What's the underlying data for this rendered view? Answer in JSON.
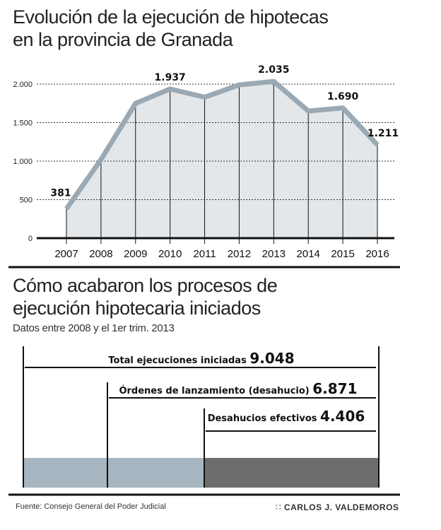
{
  "chart_data": [
    {
      "type": "area",
      "title": "Evolución de la ejecución de hipotecas en la provincia de Granada",
      "title_lines": [
        "Evolución de la ejecución de hipotecas",
        "en la provincia de Granada"
      ],
      "x": [
        "2007",
        "2008",
        "2009",
        "2010",
        "2011",
        "2012",
        "2013",
        "2014",
        "2015",
        "2016"
      ],
      "values": [
        381,
        1020,
        1750,
        1937,
        1830,
        1990,
        2035,
        1650,
        1690,
        1211
      ],
      "data_labels": {
        "2007": "381",
        "2010": "1.937",
        "2013": "2.035",
        "2015": "1.690",
        "2016": "1.211"
      },
      "yticks": [
        0,
        500,
        1000,
        1500,
        2000
      ],
      "ytick_labels": [
        "0",
        "500",
        "1.000",
        "1.500",
        "2.000"
      ],
      "ylim": [
        0,
        2000
      ],
      "grid": true,
      "line_color": "#9aa9b3",
      "fill_color": "#e3e7ea"
    },
    {
      "type": "bar",
      "title": "Cómo acabaron los procesos de ejecución hipotecaria iniciados",
      "title_lines": [
        "Cómo acabaron los procesos de",
        "ejecución hipotecaria iniciados"
      ],
      "subtitle": "Datos entre 2008 y el 1er trim. 2013",
      "categories": [
        "Total ejecuciones iniciadas",
        "Órdenes de lanzamiento (desahucio)",
        "Desahucios efectivos"
      ],
      "value_labels": [
        "9.048",
        "6.871",
        "4.406"
      ],
      "values": [
        9048,
        6871,
        4406
      ],
      "colors": [
        "#a6b5bf",
        "#a6b5bf",
        "#6d6d6d"
      ]
    }
  ],
  "footer": {
    "source": "Fuente: Consejo General del Poder Judicial",
    "author": "CARLOS J. VALDEMOROS"
  }
}
